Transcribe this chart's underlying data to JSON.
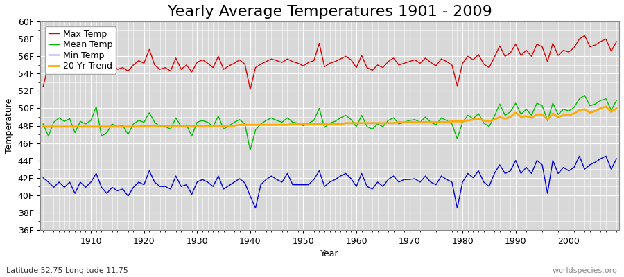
{
  "title": "Yearly Average Temperatures 1901 - 2009",
  "xlabel": "Year",
  "ylabel": "Temperature",
  "bottom_left_text": "Latitude 52.75 Longitude 11.75",
  "bottom_right_text": "worldspecies.org",
  "legend_entries": [
    "Max Temp",
    "Mean Temp",
    "Min Temp",
    "20 Yr Trend"
  ],
  "legend_colors": [
    "#dd0000",
    "#00bb00",
    "#0000dd",
    "#ffaa00"
  ],
  "years": [
    1901,
    1902,
    1903,
    1904,
    1905,
    1906,
    1907,
    1908,
    1909,
    1910,
    1911,
    1912,
    1913,
    1914,
    1915,
    1916,
    1917,
    1918,
    1919,
    1920,
    1921,
    1922,
    1923,
    1924,
    1925,
    1926,
    1927,
    1928,
    1929,
    1930,
    1931,
    1932,
    1933,
    1934,
    1935,
    1936,
    1937,
    1938,
    1939,
    1940,
    1941,
    1942,
    1943,
    1944,
    1945,
    1946,
    1947,
    1948,
    1949,
    1950,
    1951,
    1952,
    1953,
    1954,
    1955,
    1956,
    1957,
    1958,
    1959,
    1960,
    1961,
    1962,
    1963,
    1964,
    1965,
    1966,
    1967,
    1968,
    1969,
    1970,
    1971,
    1972,
    1973,
    1974,
    1975,
    1976,
    1977,
    1978,
    1979,
    1980,
    1981,
    1982,
    1983,
    1984,
    1985,
    1986,
    1987,
    1988,
    1989,
    1990,
    1991,
    1992,
    1993,
    1994,
    1995,
    1996,
    1997,
    1998,
    1999,
    2000,
    2001,
    2002,
    2003,
    2004,
    2005,
    2006,
    2007,
    2008,
    2009
  ],
  "max_temp": [
    52.5,
    55.0,
    54.5,
    54.8,
    54.2,
    55.6,
    54.5,
    55.3,
    55.0,
    55.2,
    57.2,
    55.0,
    54.5,
    55.2,
    54.5,
    54.7,
    54.3,
    55.0,
    55.5,
    55.2,
    56.8,
    55.0,
    54.5,
    54.7,
    54.3,
    55.8,
    54.5,
    55.0,
    54.2,
    55.3,
    55.6,
    55.2,
    54.7,
    56.0,
    54.5,
    54.9,
    55.2,
    55.6,
    55.1,
    52.2,
    54.7,
    55.1,
    55.4,
    55.7,
    55.5,
    55.3,
    55.7,
    55.4,
    55.2,
    54.9,
    55.3,
    55.5,
    57.5,
    54.8,
    55.2,
    55.4,
    55.7,
    56.0,
    55.6,
    54.7,
    56.1,
    54.7,
    54.4,
    55.0,
    54.7,
    55.4,
    55.8,
    55.0,
    55.2,
    55.4,
    55.6,
    55.2,
    55.8,
    55.3,
    54.9,
    55.7,
    55.4,
    55.0,
    52.6,
    55.2,
    56.0,
    55.6,
    56.2,
    55.1,
    54.7,
    55.9,
    57.2,
    56.0,
    56.4,
    57.4,
    56.1,
    56.7,
    56.0,
    57.4,
    57.1,
    55.4,
    57.5,
    56.1,
    56.7,
    56.5,
    57.0,
    58.0,
    58.4,
    57.1,
    57.3,
    57.7,
    58.0,
    56.6,
    57.7
  ],
  "mean_temp": [
    48.2,
    46.8,
    48.4,
    48.9,
    48.5,
    48.8,
    47.2,
    48.5,
    48.2,
    48.6,
    50.2,
    46.8,
    47.2,
    48.2,
    47.9,
    48.0,
    47.0,
    48.2,
    48.6,
    48.4,
    49.5,
    48.4,
    47.9,
    47.9,
    47.6,
    48.9,
    47.9,
    48.1,
    46.8,
    48.4,
    48.6,
    48.4,
    47.9,
    49.1,
    47.6,
    48.0,
    48.4,
    48.7,
    48.2,
    45.2,
    47.5,
    48.2,
    48.6,
    48.9,
    48.6,
    48.4,
    48.9,
    48.4,
    48.3,
    48.0,
    48.3,
    48.6,
    50.0,
    47.8,
    48.3,
    48.5,
    48.9,
    49.2,
    48.7,
    47.9,
    49.2,
    47.9,
    47.6,
    48.2,
    47.9,
    48.6,
    48.9,
    48.2,
    48.4,
    48.6,
    48.7,
    48.4,
    49.0,
    48.4,
    48.1,
    48.9,
    48.6,
    48.2,
    46.5,
    48.4,
    49.2,
    48.8,
    49.4,
    48.3,
    47.9,
    49.1,
    50.5,
    49.2,
    49.6,
    50.6,
    49.3,
    49.9,
    49.2,
    50.6,
    50.3,
    48.6,
    50.6,
    49.3,
    49.9,
    49.7,
    50.1,
    51.1,
    51.5,
    50.3,
    50.5,
    50.9,
    51.1,
    49.8,
    50.9
  ],
  "min_temp": [
    42.0,
    41.5,
    40.9,
    41.5,
    40.9,
    41.5,
    40.2,
    41.5,
    40.9,
    41.5,
    42.5,
    40.9,
    40.2,
    40.9,
    40.5,
    40.7,
    39.9,
    40.9,
    41.5,
    41.2,
    42.8,
    41.5,
    41.0,
    41.0,
    40.7,
    42.2,
    41.0,
    41.2,
    40.1,
    41.5,
    41.8,
    41.5,
    41.0,
    42.2,
    40.7,
    41.1,
    41.5,
    41.9,
    41.4,
    39.9,
    38.5,
    41.2,
    41.8,
    42.2,
    41.8,
    41.5,
    42.5,
    41.2,
    41.2,
    41.2,
    41.2,
    41.8,
    42.8,
    41.0,
    41.5,
    41.8,
    42.2,
    42.5,
    41.9,
    41.0,
    42.5,
    41.0,
    40.7,
    41.5,
    41.0,
    41.8,
    42.2,
    41.5,
    41.8,
    41.8,
    41.9,
    41.5,
    42.2,
    41.5,
    41.2,
    42.2,
    41.8,
    41.5,
    38.5,
    41.5,
    42.5,
    42.0,
    42.8,
    41.5,
    41.0,
    42.5,
    43.5,
    42.5,
    42.8,
    44.0,
    42.5,
    43.2,
    42.5,
    44.0,
    43.5,
    40.2,
    44.0,
    42.5,
    43.2,
    42.8,
    43.2,
    44.5,
    43.0,
    43.5,
    43.8,
    44.2,
    44.5,
    43.0,
    44.2
  ],
  "trend": [
    47.9,
    47.9,
    47.9,
    47.9,
    47.9,
    47.9,
    47.9,
    47.9,
    47.9,
    47.9,
    47.9,
    47.9,
    47.9,
    47.9,
    47.9,
    47.9,
    47.9,
    47.9,
    47.9,
    48.0,
    48.0,
    48.0,
    48.0,
    48.0,
    48.0,
    48.0,
    48.0,
    48.0,
    48.0,
    48.0,
    48.0,
    48.0,
    48.0,
    48.0,
    48.0,
    48.0,
    48.0,
    48.1,
    48.1,
    48.1,
    48.1,
    48.1,
    48.1,
    48.1,
    48.1,
    48.1,
    48.1,
    48.2,
    48.2,
    48.2,
    48.2,
    48.2,
    48.2,
    48.2,
    48.2,
    48.2,
    48.2,
    48.3,
    48.3,
    48.3,
    48.3,
    48.3,
    48.3,
    48.3,
    48.3,
    48.3,
    48.3,
    48.4,
    48.4,
    48.4,
    48.4,
    48.4,
    48.4,
    48.4,
    48.4,
    48.4,
    48.4,
    48.5,
    48.5,
    48.5,
    48.6,
    48.7,
    48.8,
    48.6,
    48.5,
    48.7,
    49.0,
    48.8,
    49.0,
    49.5,
    49.0,
    49.1,
    48.9,
    49.3,
    49.3,
    48.7,
    49.4,
    49.0,
    49.2,
    49.2,
    49.4,
    49.8,
    49.9,
    49.5,
    49.7,
    50.0,
    50.2,
    49.6,
    50.0
  ],
  "ylim": [
    36,
    60
  ],
  "yticks": [
    36,
    38,
    40,
    42,
    44,
    46,
    48,
    50,
    52,
    54,
    56,
    58,
    60
  ],
  "ytick_labels": [
    "36F",
    "38F",
    "40F",
    "42F",
    "44F",
    "46F",
    "48F",
    "50F",
    "52F",
    "54F",
    "56F",
    "58F",
    "60F"
  ],
  "fig_bg_color": "#ffffff",
  "plot_bg_color": "#d8d8d8",
  "grid_color": "#ffffff",
  "line_width": 1.0,
  "title_fontsize": 16,
  "axis_fontsize": 9,
  "legend_fontsize": 9
}
